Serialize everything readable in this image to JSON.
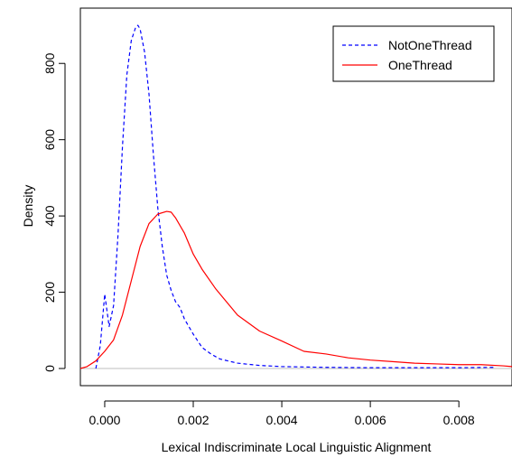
{
  "chart_data": {
    "type": "line",
    "title": "",
    "xlabel": "Lexical Indiscriminate Local Linguistic Alignment",
    "ylabel": "Density",
    "xlim": [
      -0.00055,
      0.0092
    ],
    "ylim": [
      -45,
      945
    ],
    "x_ticks": [
      0.0,
      0.002,
      0.004,
      0.006,
      0.008
    ],
    "x_tick_labels": [
      "0.000",
      "0.002",
      "0.004",
      "0.006",
      "0.008"
    ],
    "y_ticks": [
      0,
      200,
      400,
      600,
      800
    ],
    "y_tick_labels": [
      "0",
      "200",
      "400",
      "600",
      "800"
    ],
    "grid": false,
    "legend_position": "top-right",
    "zero_line": 0,
    "series": [
      {
        "name": "NotOneThread",
        "color": "#0000ff",
        "line_style": "dashed",
        "x": [
          -0.0002,
          -0.0001,
          0.0,
          0.0001,
          0.0002,
          0.0003,
          0.0004,
          0.0005,
          0.0006,
          0.0007,
          0.00075,
          0.0008,
          0.0009,
          0.001,
          0.0011,
          0.0012,
          0.0013,
          0.0014,
          0.0015,
          0.0016,
          0.0017,
          0.0018,
          0.002,
          0.0022,
          0.0024,
          0.0026,
          0.003,
          0.0035,
          0.004,
          0.005,
          0.006,
          0.007,
          0.008,
          0.0088
        ],
        "y": [
          0,
          60,
          195,
          110,
          165,
          350,
          580,
          770,
          860,
          895,
          900,
          890,
          830,
          720,
          560,
          420,
          320,
          245,
          205,
          175,
          160,
          130,
          90,
          55,
          38,
          25,
          14,
          8,
          5,
          3,
          2,
          2,
          2,
          3
        ]
      },
      {
        "name": "OneThread",
        "color": "#ff0000",
        "line_style": "solid",
        "x": [
          -0.00055,
          -0.0004,
          -0.0002,
          0.0,
          0.0002,
          0.0004,
          0.0006,
          0.0008,
          0.001,
          0.0012,
          0.0014,
          0.0015,
          0.0016,
          0.0018,
          0.002,
          0.0022,
          0.0025,
          0.003,
          0.0035,
          0.004,
          0.0045,
          0.005,
          0.0055,
          0.006,
          0.0065,
          0.007,
          0.0075,
          0.008,
          0.0085,
          0.009,
          0.0092
        ],
        "y": [
          0,
          5,
          20,
          45,
          75,
          140,
          230,
          320,
          380,
          405,
          412,
          410,
          395,
          355,
          300,
          260,
          210,
          140,
          98,
          72,
          45,
          38,
          28,
          22,
          18,
          14,
          12,
          10,
          10,
          7,
          5
        ]
      }
    ]
  }
}
